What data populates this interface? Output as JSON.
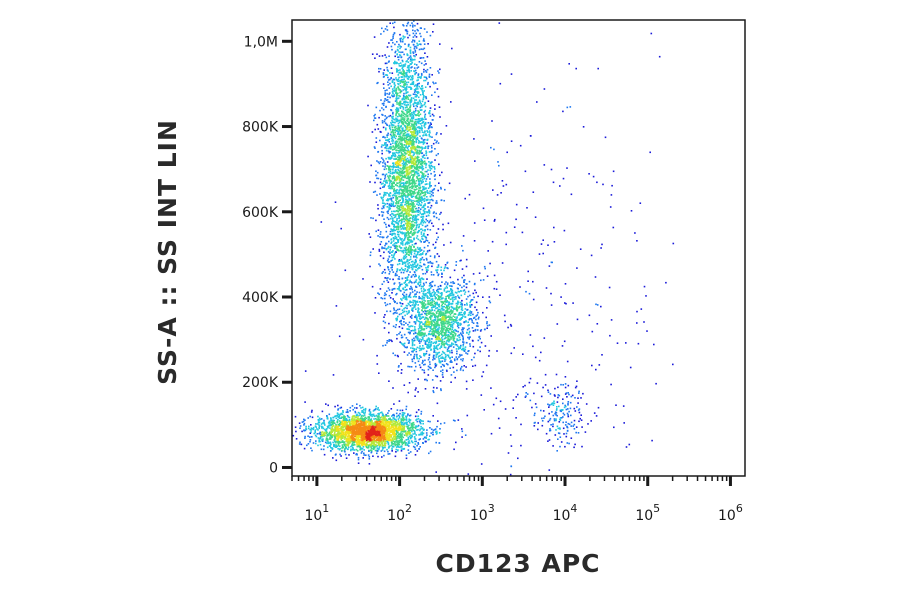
{
  "chart_data": {
    "type": "scatter",
    "subtype": "flow-cytometry density dot plot",
    "xlabel": "CD123 APC",
    "ylabel": "SS-A :: SS INT LIN",
    "x_scale": "log",
    "y_scale": "linear",
    "xlim": [
      5,
      1500000
    ],
    "ylim": [
      -20000,
      1050000
    ],
    "x_ticks": [
      {
        "base": "10",
        "exp": "1",
        "value": 10
      },
      {
        "base": "10",
        "exp": "2",
        "value": 100
      },
      {
        "base": "10",
        "exp": "3",
        "value": 1000
      },
      {
        "base": "10",
        "exp": "4",
        "value": 10000
      },
      {
        "base": "10",
        "exp": "5",
        "value": 100000
      },
      {
        "base": "10",
        "exp": "6",
        "value": 1000000
      }
    ],
    "y_ticks": [
      {
        "label": "0",
        "value": 0
      },
      {
        "label": "200K",
        "value": 200000
      },
      {
        "label": "400K",
        "value": 400000
      },
      {
        "label": "600K",
        "value": 600000
      },
      {
        "label": "800K",
        "value": 800000
      },
      {
        "label": "1,0M",
        "value": 1000000
      }
    ],
    "color_scale": [
      "#1a1ad9",
      "#1f78f0",
      "#22c7e0",
      "#3ed88a",
      "#b5e83a",
      "#f2e21c",
      "#f58a14",
      "#e2231a"
    ],
    "populations": [
      {
        "center_x": 40,
        "center_y": 85000,
        "spread_x_log": 0.32,
        "spread_y": 22000,
        "weight": 0.3
      },
      {
        "center_x": 120,
        "center_y": 700000,
        "spread_x_log": 0.16,
        "spread_y": 170000,
        "weight": 0.4
      },
      {
        "center_x": 300,
        "center_y": 340000,
        "spread_x_log": 0.22,
        "spread_y": 55000,
        "weight": 0.16
      },
      {
        "center_x": 8500,
        "center_y": 130000,
        "spread_x_log": 0.17,
        "spread_y": 35000,
        "weight": 0.02
      },
      {
        "center_x": 2000,
        "center_y": 400000,
        "spread_x_log": 0.9,
        "spread_y": 260000,
        "weight": 0.04
      }
    ]
  }
}
